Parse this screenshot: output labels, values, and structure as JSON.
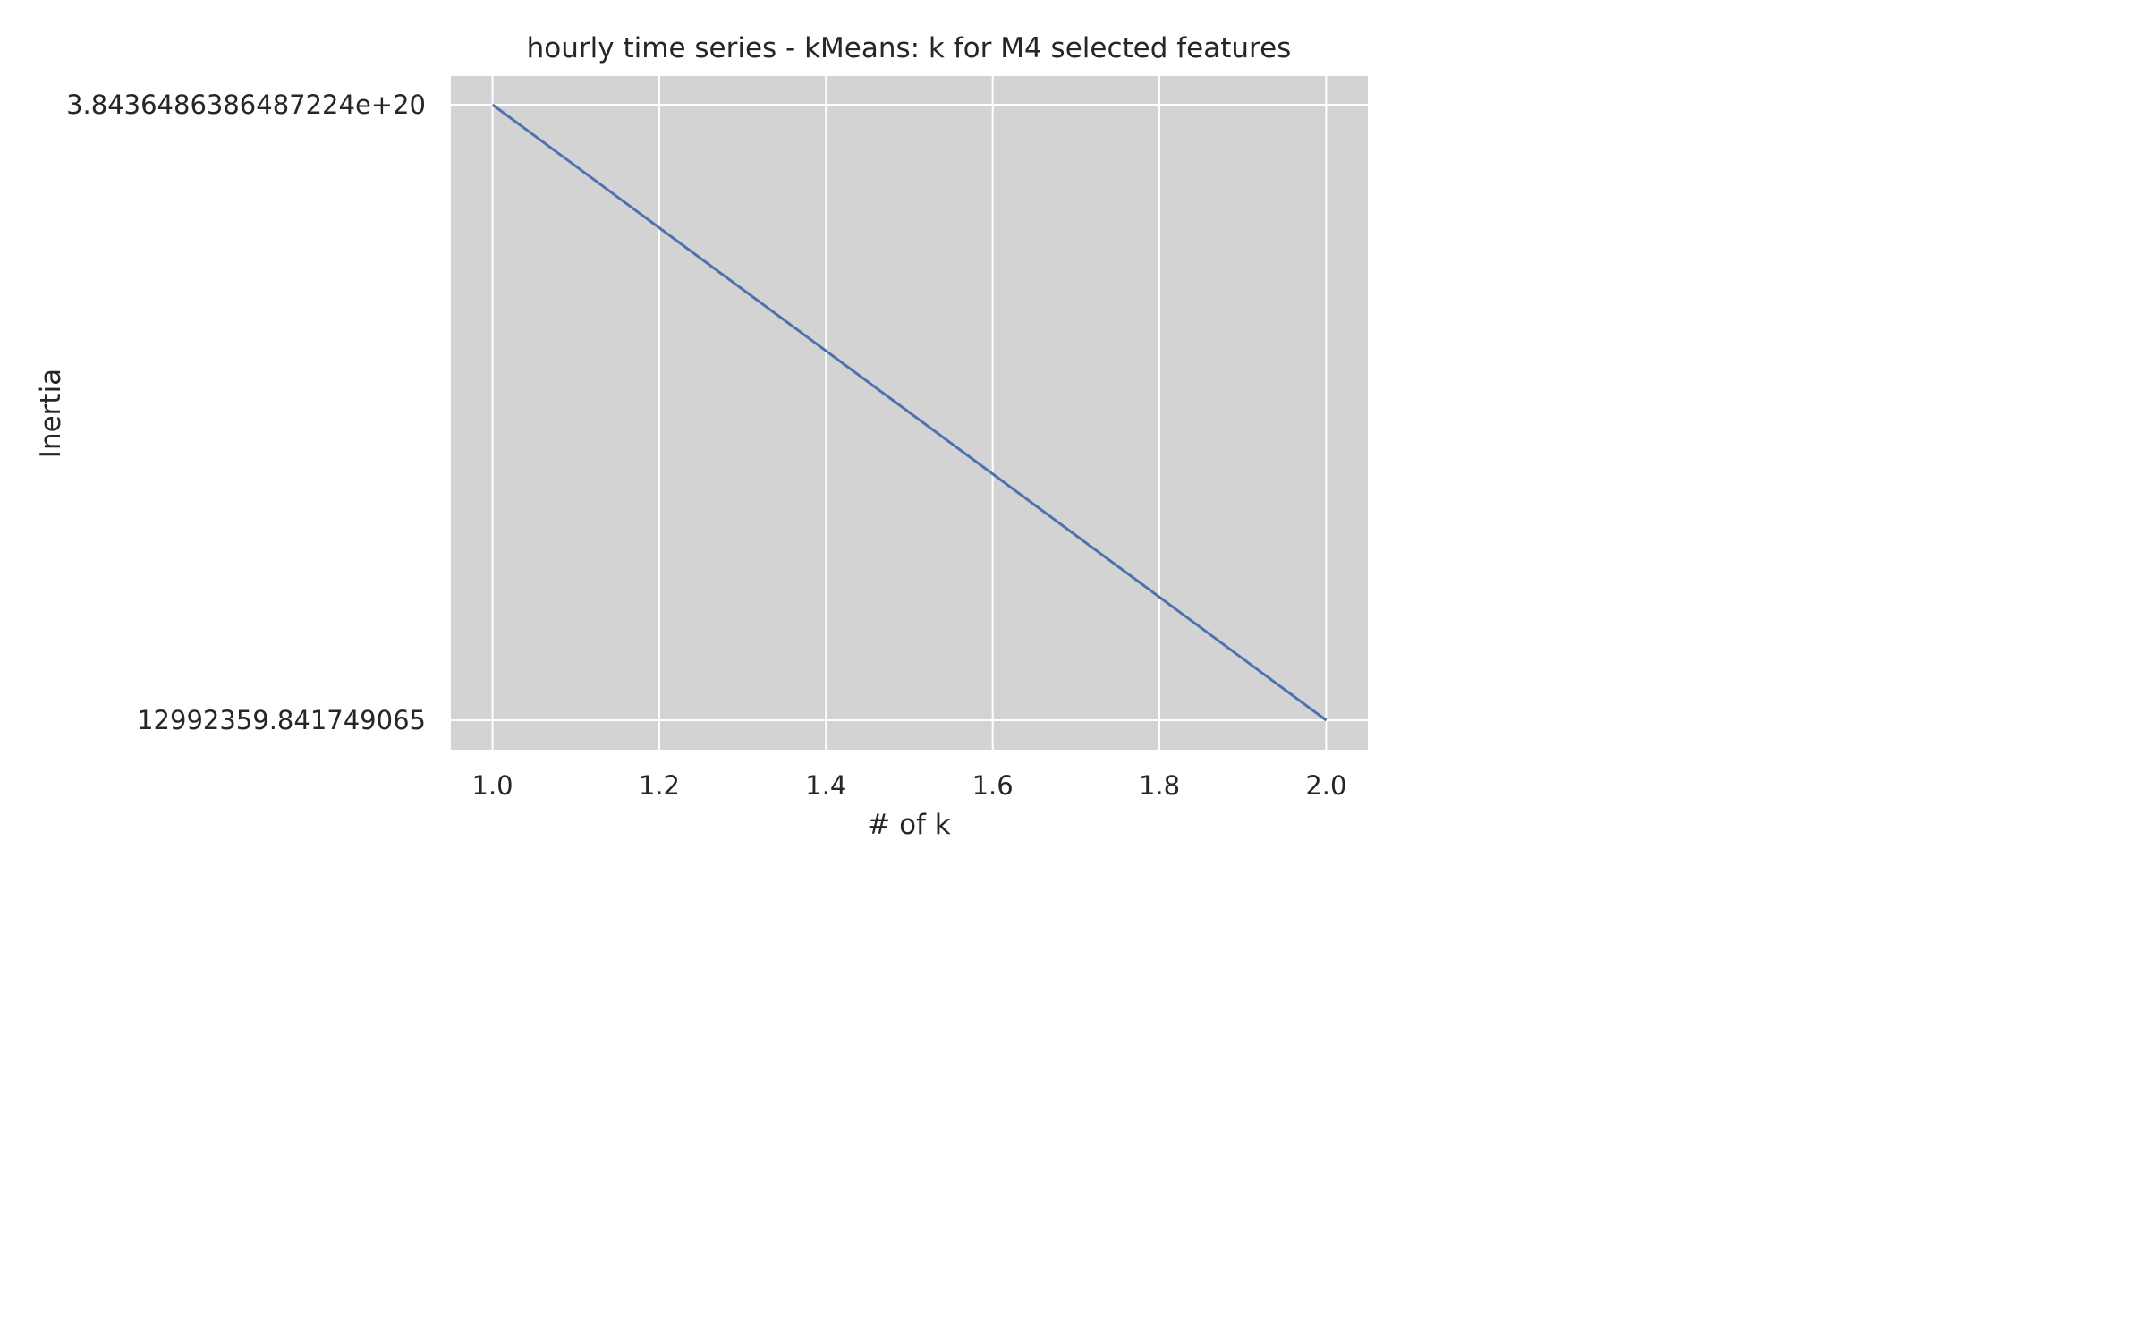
{
  "chart_data": {
    "type": "line",
    "title": "hourly time series - kMeans: k for M4 selected features",
    "xlabel": "# of k",
    "ylabel": "Inertia",
    "x": [
      1.0,
      2.0
    ],
    "series": [
      {
        "values": [
          3.843648638648722e+20,
          12992359.841749065
        ],
        "color": "#4c72b0"
      }
    ],
    "xlim": [
      0.95,
      2.05
    ],
    "x_ticks": [
      1.0,
      1.2,
      1.4,
      1.6,
      1.8,
      2.0
    ],
    "x_tick_labels": [
      "1.0",
      "1.2",
      "1.4",
      "1.6",
      "1.8",
      "2.0"
    ],
    "y_ticks": [
      3.843648638648722e+20,
      12992359.841749065
    ],
    "y_tick_labels": [
      "3.843648638648722​4e+20",
      "12992359.841749065"
    ],
    "grid": true,
    "plot_background": "#d3d3d3",
    "grid_color": "#ffffff"
  }
}
